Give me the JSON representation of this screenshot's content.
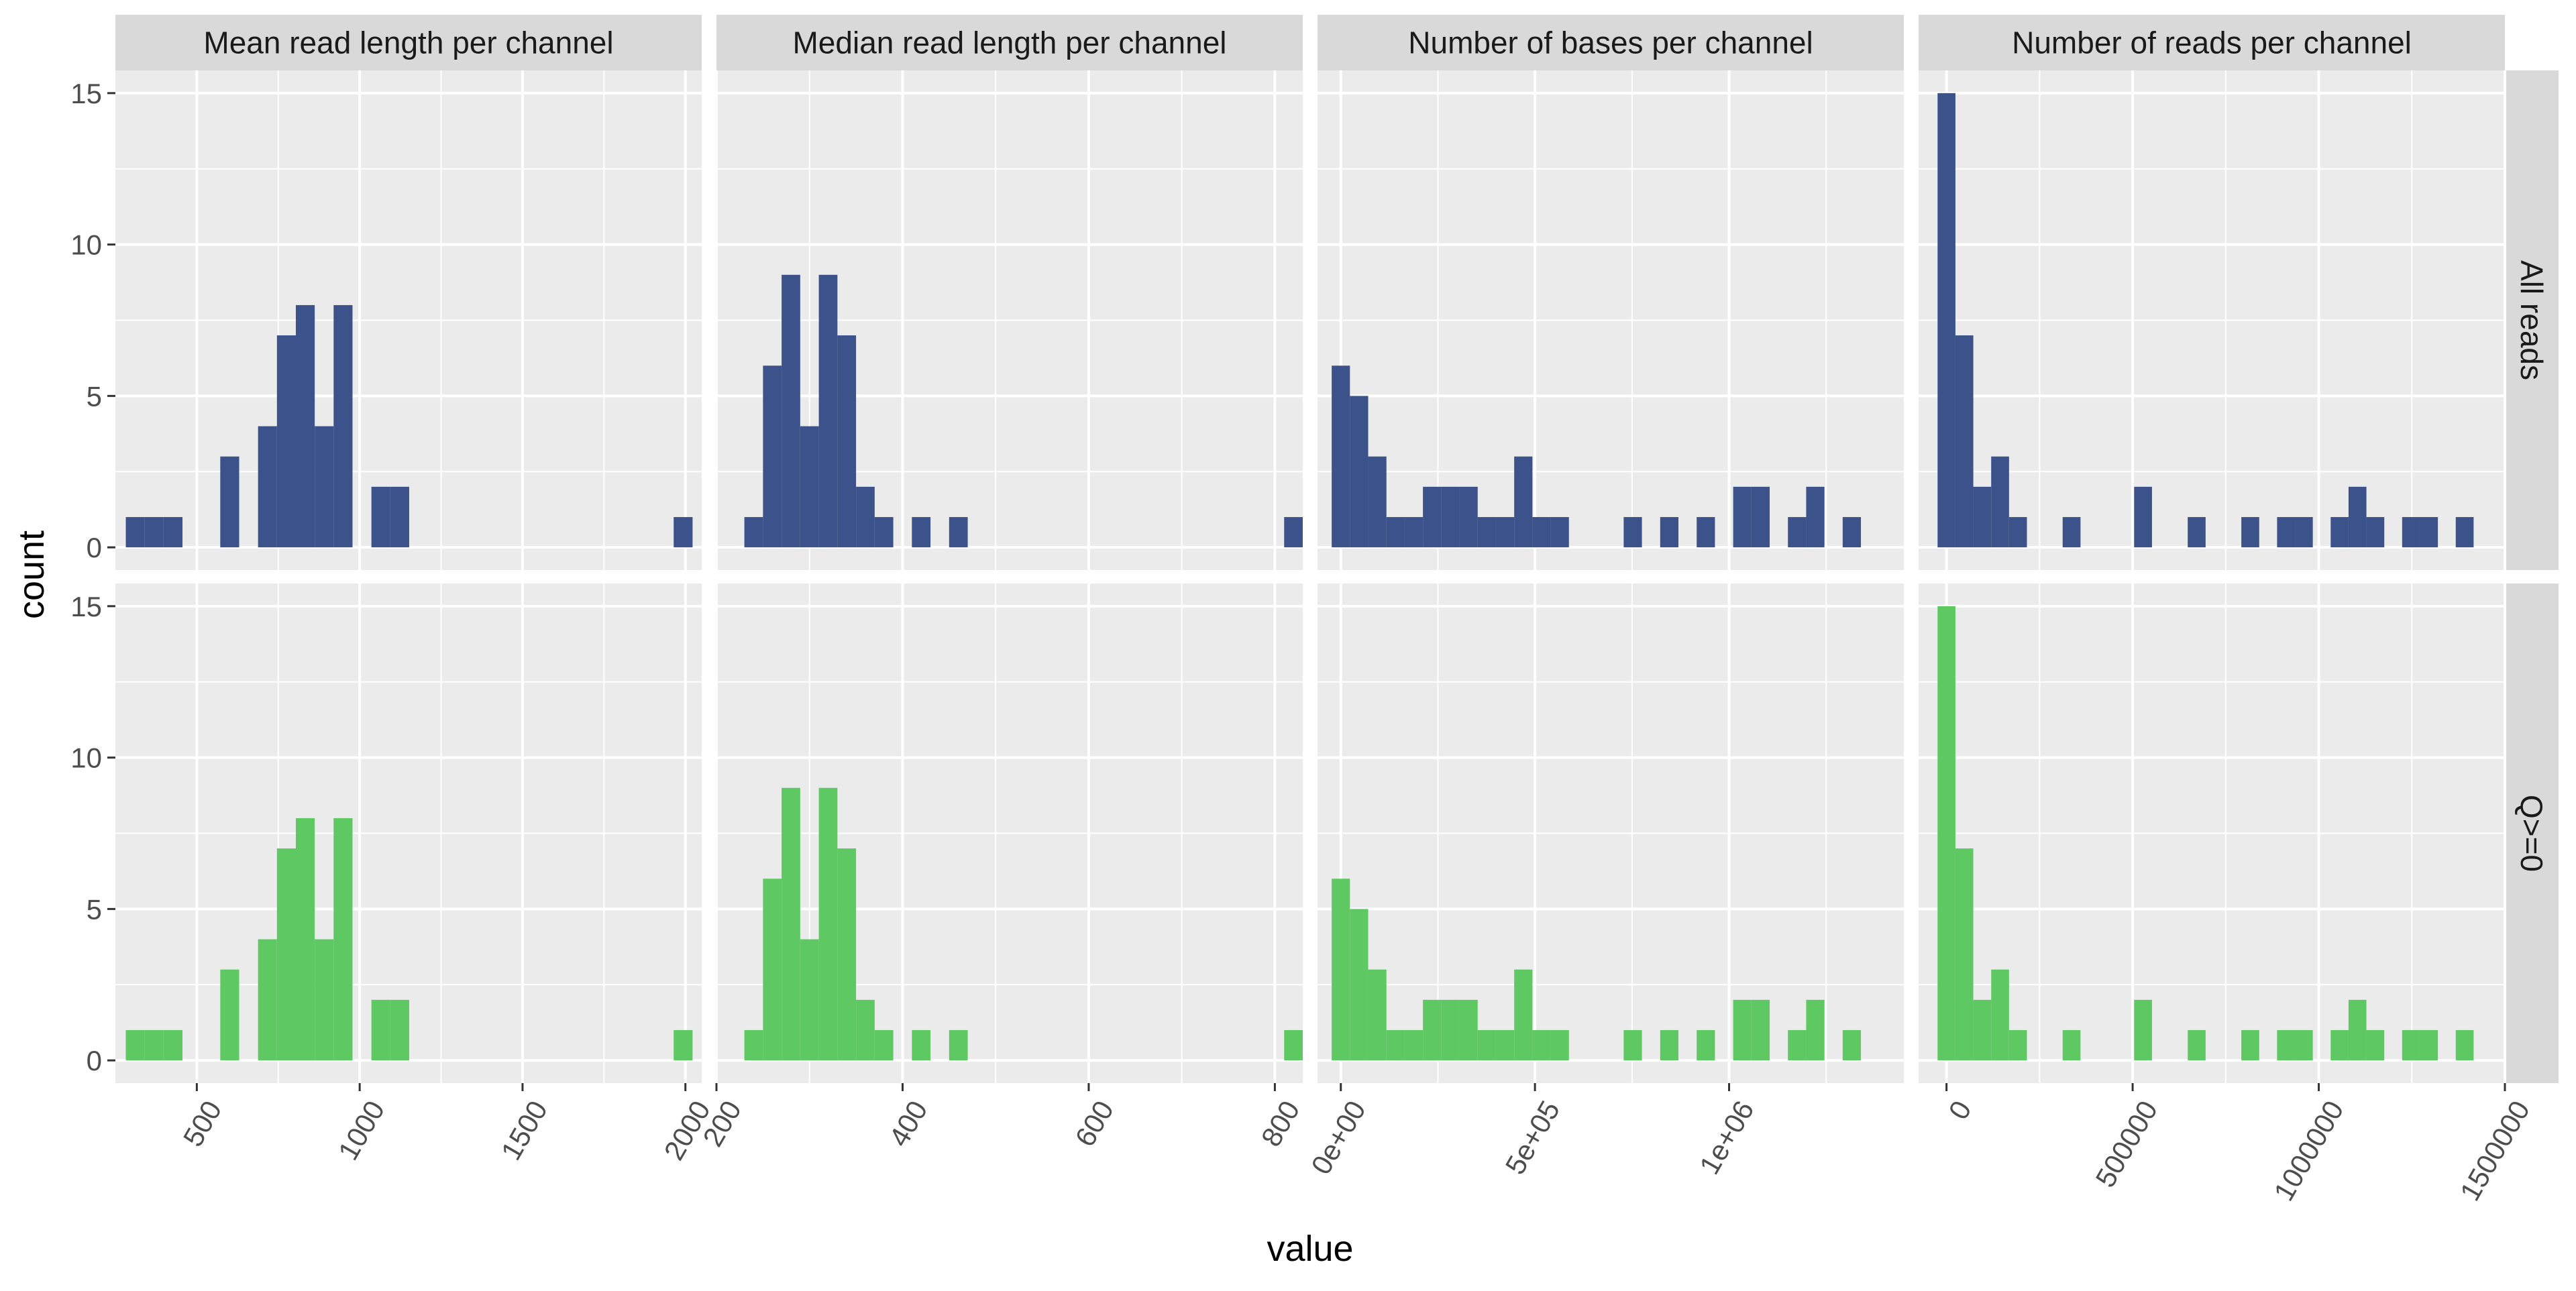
{
  "figure": {
    "xlabel": "value",
    "ylabel": "count",
    "row_strips": [
      "All reads",
      "Q>=0"
    ],
    "col_strips": [
      "Mean read length per channel",
      "Median read length per channel",
      "Number of bases per channel",
      "Number of reads per channel"
    ]
  },
  "colors": {
    "All reads": "#3b528b",
    "Q>=0": "#5ec962",
    "panel_bg": "#ebebeb",
    "strip_bg": "#d9d9d9",
    "grid": "#ffffff"
  },
  "chart_data": [
    {
      "type": "bar",
      "title": "Mean read length per channel",
      "xlim": [
        250,
        2050
      ],
      "ylim": [
        -0.75,
        15.75
      ],
      "x_ticks": [
        500,
        1000,
        1500,
        2000
      ],
      "x_tick_labels": [
        "500",
        "1000",
        "1500",
        "2000"
      ],
      "y_ticks": [
        0,
        5,
        10,
        15
      ],
      "y_tick_labels": [
        "0",
        "5",
        "10",
        "15"
      ],
      "bin_width": 58,
      "series": [
        {
          "name": "All reads",
          "bins": [
            [
              311,
              1
            ],
            [
              369,
              1
            ],
            [
              427,
              1
            ],
            [
              601,
              3
            ],
            [
              717,
              4
            ],
            [
              775,
              7
            ],
            [
              833,
              8
            ],
            [
              891,
              4
            ],
            [
              949,
              8
            ],
            [
              1065,
              2
            ],
            [
              1123,
              2
            ],
            [
              1993,
              1
            ]
          ]
        },
        {
          "name": "Q>=0",
          "bins": [
            [
              311,
              1
            ],
            [
              369,
              1
            ],
            [
              427,
              1
            ],
            [
              601,
              3
            ],
            [
              717,
              4
            ],
            [
              775,
              7
            ],
            [
              833,
              8
            ],
            [
              891,
              4
            ],
            [
              949,
              8
            ],
            [
              1065,
              2
            ],
            [
              1123,
              2
            ],
            [
              1993,
              1
            ]
          ]
        }
      ]
    },
    {
      "type": "bar",
      "title": "Median read length per channel",
      "xlim": [
        200,
        830
      ],
      "ylim": [
        -0.75,
        15.75
      ],
      "x_ticks": [
        200,
        400,
        600,
        800
      ],
      "x_tick_labels": [
        "200",
        "400",
        "600",
        "800"
      ],
      "y_ticks": [
        0,
        5,
        10,
        15
      ],
      "y_tick_labels": [
        "0",
        "5",
        "10",
        "15"
      ],
      "bin_width": 20,
      "series": [
        {
          "name": "All reads",
          "bins": [
            [
              240,
              1
            ],
            [
              260,
              6
            ],
            [
              280,
              9
            ],
            [
              300,
              4
            ],
            [
              320,
              9
            ],
            [
              340,
              7
            ],
            [
              360,
              2
            ],
            [
              380,
              1
            ],
            [
              420,
              1
            ],
            [
              460,
              1
            ],
            [
              820,
              1
            ]
          ]
        },
        {
          "name": "Q>=0",
          "bins": [
            [
              240,
              1
            ],
            [
              260,
              6
            ],
            [
              280,
              9
            ],
            [
              300,
              4
            ],
            [
              320,
              9
            ],
            [
              340,
              7
            ],
            [
              360,
              2
            ],
            [
              380,
              1
            ],
            [
              420,
              1
            ],
            [
              460,
              1
            ],
            [
              820,
              1
            ]
          ]
        }
      ]
    },
    {
      "type": "bar",
      "title": "Number of bases per channel",
      "xlim": [
        -60000,
        1450000
      ],
      "ylim": [
        -0.75,
        15.75
      ],
      "x_ticks": [
        0,
        500000,
        1000000
      ],
      "x_tick_labels": [
        "0e+00",
        "5e+05",
        "1e+06"
      ],
      "y_ticks": [
        0,
        5,
        10,
        15
      ],
      "y_tick_labels": [
        "0",
        "5",
        "10",
        "15"
      ],
      "bin_width": 47000,
      "series": [
        {
          "name": "All reads",
          "bins": [
            [
              0,
              6
            ],
            [
              47000,
              5
            ],
            [
              94000,
              3
            ],
            [
              141000,
              1
            ],
            [
              188000,
              1
            ],
            [
              235000,
              2
            ],
            [
              282000,
              2
            ],
            [
              329000,
              2
            ],
            [
              376000,
              1
            ],
            [
              423000,
              1
            ],
            [
              470000,
              3
            ],
            [
              517000,
              1
            ],
            [
              564000,
              1
            ],
            [
              752000,
              1
            ],
            [
              846000,
              1
            ],
            [
              940000,
              1
            ],
            [
              1034000,
              2
            ],
            [
              1081000,
              2
            ],
            [
              1175000,
              1
            ],
            [
              1222000,
              2
            ],
            [
              1316000,
              1
            ]
          ]
        },
        {
          "name": "Q>=0",
          "bins": [
            [
              0,
              6
            ],
            [
              47000,
              5
            ],
            [
              94000,
              3
            ],
            [
              141000,
              1
            ],
            [
              188000,
              1
            ],
            [
              235000,
              2
            ],
            [
              282000,
              2
            ],
            [
              329000,
              2
            ],
            [
              376000,
              1
            ],
            [
              423000,
              1
            ],
            [
              470000,
              3
            ],
            [
              517000,
              1
            ],
            [
              564000,
              1
            ],
            [
              752000,
              1
            ],
            [
              846000,
              1
            ],
            [
              940000,
              1
            ],
            [
              1034000,
              2
            ],
            [
              1081000,
              2
            ],
            [
              1175000,
              1
            ],
            [
              1222000,
              2
            ],
            [
              1316000,
              1
            ]
          ]
        }
      ]
    },
    {
      "type": "bar",
      "title": "Number of reads per channel",
      "xlim": [
        -75000,
        1500000
      ],
      "ylim": [
        -0.75,
        15.75
      ],
      "x_ticks": [
        0,
        500000,
        1000000,
        1500000
      ],
      "x_tick_labels": [
        "0",
        "500000",
        "1000000",
        "1500000"
      ],
      "y_ticks": [
        0,
        5,
        10,
        15
      ],
      "y_tick_labels": [
        "0",
        "5",
        "10",
        "15"
      ],
      "bin_width": 48000,
      "series": [
        {
          "name": "All reads",
          "bins": [
            [
              0,
              15
            ],
            [
              48000,
              7
            ],
            [
              96000,
              2
            ],
            [
              144000,
              3
            ],
            [
              192000,
              1
            ],
            [
              336000,
              1
            ],
            [
              528000,
              2
            ],
            [
              672000,
              1
            ],
            [
              816000,
              1
            ],
            [
              912000,
              1
            ],
            [
              960000,
              1
            ],
            [
              1056000,
              1
            ],
            [
              1104000,
              2
            ],
            [
              1152000,
              1
            ],
            [
              1248000,
              1
            ],
            [
              1296000,
              1
            ],
            [
              1392000,
              1
            ]
          ]
        },
        {
          "name": "Q>=0",
          "bins": [
            [
              0,
              15
            ],
            [
              48000,
              7
            ],
            [
              96000,
              2
            ],
            [
              144000,
              3
            ],
            [
              192000,
              1
            ],
            [
              336000,
              1
            ],
            [
              528000,
              2
            ],
            [
              672000,
              1
            ],
            [
              816000,
              1
            ],
            [
              912000,
              1
            ],
            [
              960000,
              1
            ],
            [
              1056000,
              1
            ],
            [
              1104000,
              2
            ],
            [
              1152000,
              1
            ],
            [
              1248000,
              1
            ],
            [
              1296000,
              1
            ],
            [
              1392000,
              1
            ]
          ]
        }
      ]
    }
  ]
}
